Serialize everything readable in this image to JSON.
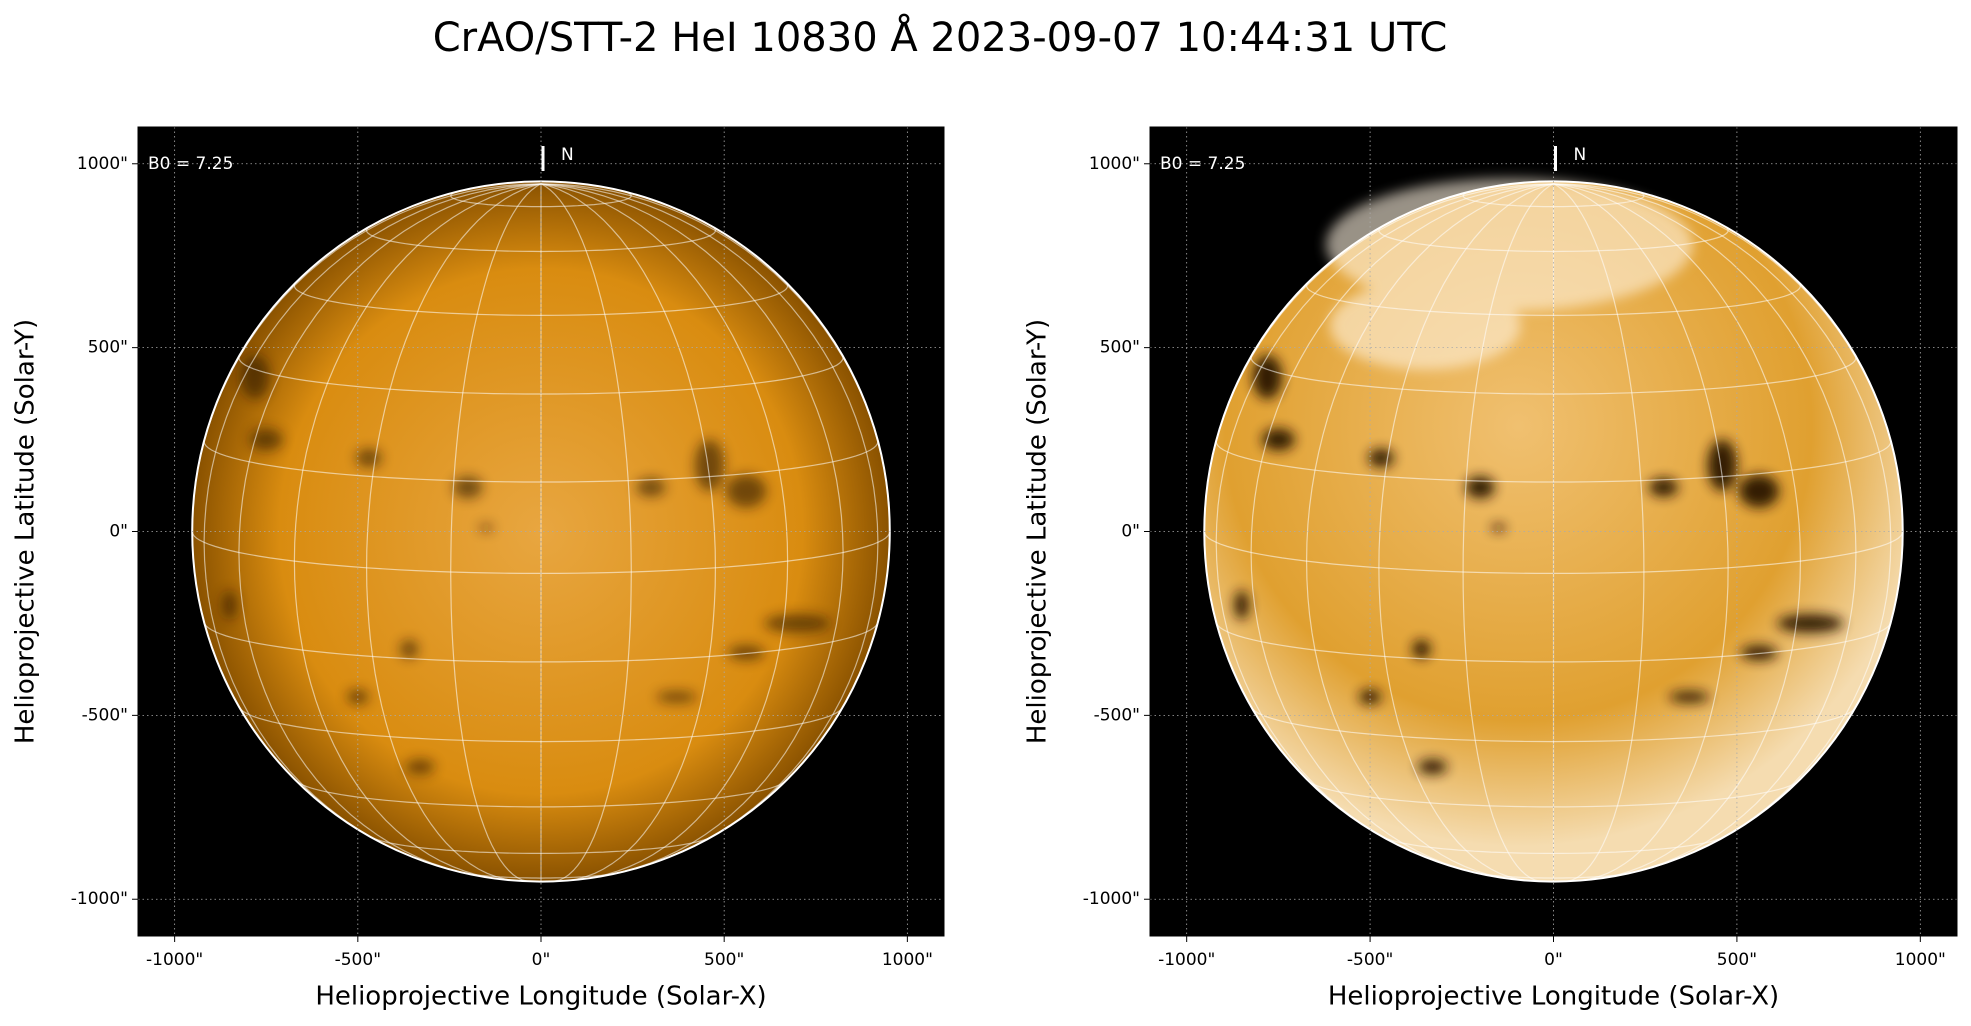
{
  "title": "CrAO/STT-2 HeI 10830 Å 2023-09-07 10:44:31 UTC",
  "chart_data": [
    {
      "type": "image",
      "xlabel": "Helioprojective Longitude (Solar-X)",
      "ylabel": "Helioprojective Latitude (Solar-Y)",
      "xlim": [
        -1100,
        1100
      ],
      "ylim": [
        -1100,
        1100
      ],
      "xticks": [
        {
          "value": -1000,
          "label": "-1000\""
        },
        {
          "value": -500,
          "label": "-500\""
        },
        {
          "value": 0,
          "label": "0\""
        },
        {
          "value": 500,
          "label": "500\""
        },
        {
          "value": 1000,
          "label": "1000\""
        }
      ],
      "yticks": [
        {
          "value": -1000,
          "label": "-1000\""
        },
        {
          "value": -500,
          "label": "-500\""
        },
        {
          "value": 0,
          "label": "0\""
        },
        {
          "value": 500,
          "label": "500\""
        },
        {
          "value": 1000,
          "label": "1000\""
        }
      ],
      "grid": true,
      "annotations": {
        "b0": "B0 = 7.25",
        "north": "N"
      }
    },
    {
      "type": "image",
      "xlabel": "Helioprojective Longitude (Solar-X)",
      "ylabel": "Helioprojective Latitude (Solar-Y)",
      "xlim": [
        -1100,
        1100
      ],
      "ylim": [
        -1100,
        1100
      ],
      "xticks": [
        {
          "value": -1000,
          "label": "-1000\""
        },
        {
          "value": -500,
          "label": "-500\""
        },
        {
          "value": 0,
          "label": "0\""
        },
        {
          "value": 500,
          "label": "500\""
        },
        {
          "value": 1000,
          "label": "1000\""
        }
      ],
      "yticks": [
        {
          "value": -1000,
          "label": "-1000\""
        },
        {
          "value": -500,
          "label": "-500\""
        },
        {
          "value": 0,
          "label": "0\""
        },
        {
          "value": 500,
          "label": "500\""
        },
        {
          "value": 1000,
          "label": "1000\""
        }
      ],
      "grid": true,
      "annotations": {
        "b0": "B0 = 7.25",
        "north": "N"
      }
    }
  ]
}
